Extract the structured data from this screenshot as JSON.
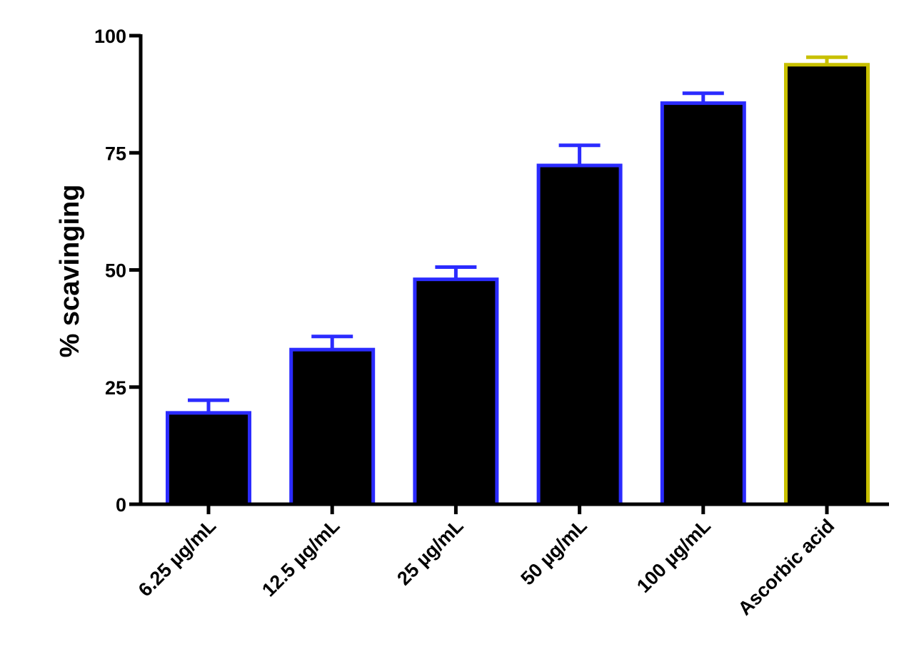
{
  "chart_data": {
    "type": "bar",
    "title": "",
    "xlabel": "",
    "ylabel": "% scavinging",
    "ylim": [
      0,
      100
    ],
    "yticks": [
      0,
      25,
      50,
      75,
      100
    ],
    "grid": false,
    "categories": [
      "6.25 µg/mL",
      "12.5 µg/mL",
      "25 µg/mL",
      "50 µg/mL",
      "100 µg/mL",
      "Ascorbic acid"
    ],
    "values": [
      19.5,
      33,
      48,
      72.3,
      85.6,
      93.8
    ],
    "errors": [
      2.7,
      2.8,
      2.6,
      4.3,
      2.1,
      1.6
    ],
    "bar_fill": "#000000",
    "bar_edge_colors": [
      "#2b2bff",
      "#2b2bff",
      "#2b2bff",
      "#2b2bff",
      "#2b2bff",
      "#c8c000"
    ]
  }
}
